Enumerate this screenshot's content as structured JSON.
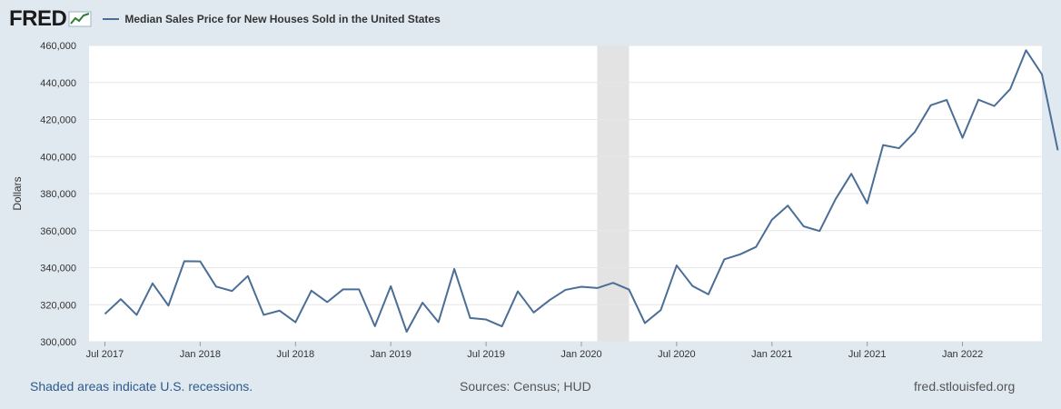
{
  "header": {
    "logo": "FRED",
    "series_title": "Median Sales Price for New Houses Sold in the United States"
  },
  "footer": {
    "recession_note": "Shaded areas indicate U.S. recessions.",
    "sources": "Sources: Census; HUD",
    "site": "fred.stlouisfed.org"
  },
  "colors": {
    "line": "#4a6e96",
    "recession": "#e3e3e3",
    "background": "#e1e9f0",
    "plot_bg": "#ffffff",
    "grid": "#e6e6e6"
  },
  "chart_data": {
    "type": "line",
    "title": "Median Sales Price for New Houses Sold in the United States",
    "xlabel": "",
    "ylabel": "Dollars",
    "ylim": [
      300000,
      460000
    ],
    "yticks": [
      300000,
      320000,
      340000,
      360000,
      380000,
      400000,
      420000,
      440000,
      460000
    ],
    "ytick_labels": [
      "300,000",
      "320,000",
      "340,000",
      "360,000",
      "380,000",
      "400,000",
      "420,000",
      "440,000",
      "460,000"
    ],
    "xtick_labels": [
      "Jul 2017",
      "Jan 2018",
      "Jul 2018",
      "Jan 2019",
      "Jul 2019",
      "Jan 2020",
      "Jul 2020",
      "Jan 2021",
      "Jul 2021",
      "Jan 2022"
    ],
    "xtick_months": [
      6,
      12,
      18,
      24,
      30,
      36,
      42,
      48,
      54,
      60
    ],
    "x_start_month": 5,
    "x_end_month": 65,
    "recessions": [
      {
        "start_month": 37,
        "end_month": 39
      }
    ],
    "series": [
      {
        "name": "Median Sales Price for New Houses Sold in the United States",
        "start": "2017-06",
        "values": [
          315000,
          323000,
          314500,
          331500,
          319500,
          343500,
          343400,
          329800,
          327400,
          335500,
          314500,
          316800,
          310500,
          327600,
          321400,
          328300,
          328300,
          308400,
          330000,
          305400,
          321100,
          310600,
          339300,
          312800,
          312000,
          308300,
          327200,
          315800,
          322500,
          328000,
          329700,
          329000,
          331800,
          328200,
          310100,
          317100,
          341200,
          330100,
          325600,
          344500,
          347200,
          351200,
          365900,
          373500,
          362300,
          359800,
          376900,
          390700,
          374700,
          406200,
          404500,
          413300,
          427700,
          430600,
          410100,
          430700,
          427300,
          436400,
          457400,
          444400,
          403400
        ]
      }
    ]
  }
}
